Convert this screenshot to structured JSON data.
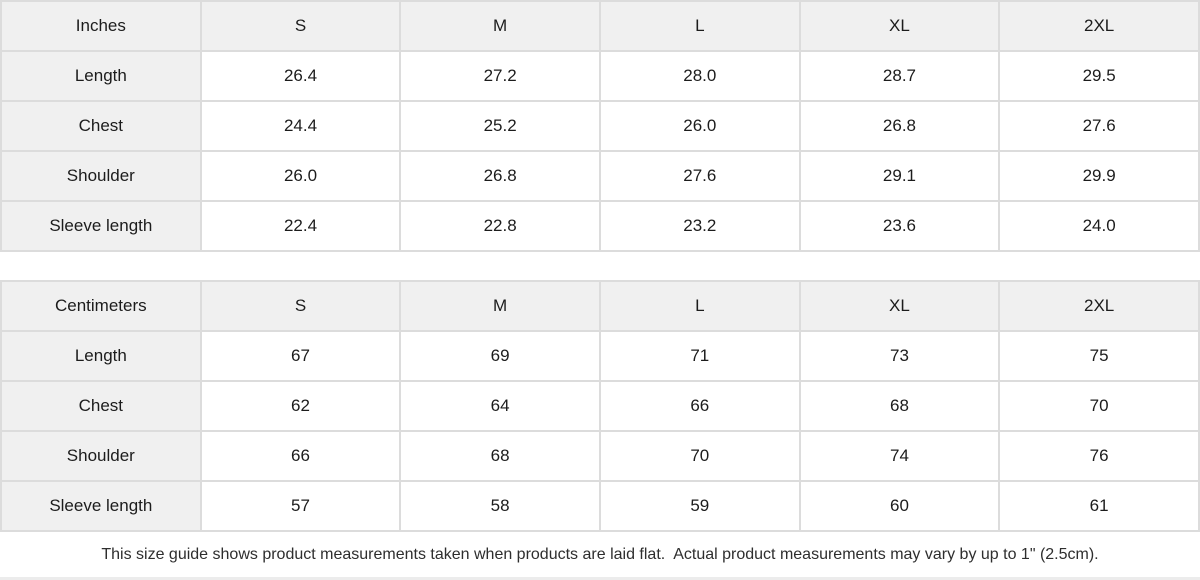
{
  "colors": {
    "header_bg": "#f0f0f0",
    "cell_bg": "#ffffff",
    "border": "#dcdcdc",
    "text": "#1c1c1c"
  },
  "tables": [
    {
      "unit_label": "Inches",
      "size_headers": [
        "S",
        "M",
        "L",
        "XL",
        "2XL"
      ],
      "rows": [
        {
          "label": "Length",
          "values": [
            "26.4",
            "27.2",
            "28.0",
            "28.7",
            "29.5"
          ]
        },
        {
          "label": "Chest",
          "values": [
            "24.4",
            "25.2",
            "26.0",
            "26.8",
            "27.6"
          ]
        },
        {
          "label": "Shoulder",
          "values": [
            "26.0",
            "26.8",
            "27.6",
            "29.1",
            "29.9"
          ]
        },
        {
          "label": "Sleeve length",
          "values": [
            "22.4",
            "22.8",
            "23.2",
            "23.6",
            "24.0"
          ]
        }
      ]
    },
    {
      "unit_label": "Centimeters",
      "size_headers": [
        "S",
        "M",
        "L",
        "XL",
        "2XL"
      ],
      "rows": [
        {
          "label": "Length",
          "values": [
            "67",
            "69",
            "71",
            "73",
            "75"
          ]
        },
        {
          "label": "Chest",
          "values": [
            "62",
            "64",
            "66",
            "68",
            "70"
          ]
        },
        {
          "label": "Shoulder",
          "values": [
            "66",
            "68",
            "70",
            "74",
            "76"
          ]
        },
        {
          "label": "Sleeve length",
          "values": [
            "57",
            "58",
            "59",
            "60",
            "61"
          ]
        }
      ]
    }
  ],
  "footer_note": "This size guide shows product measurements taken when products are laid flat.  Actual product measurements may vary by up to 1\" (2.5cm)."
}
